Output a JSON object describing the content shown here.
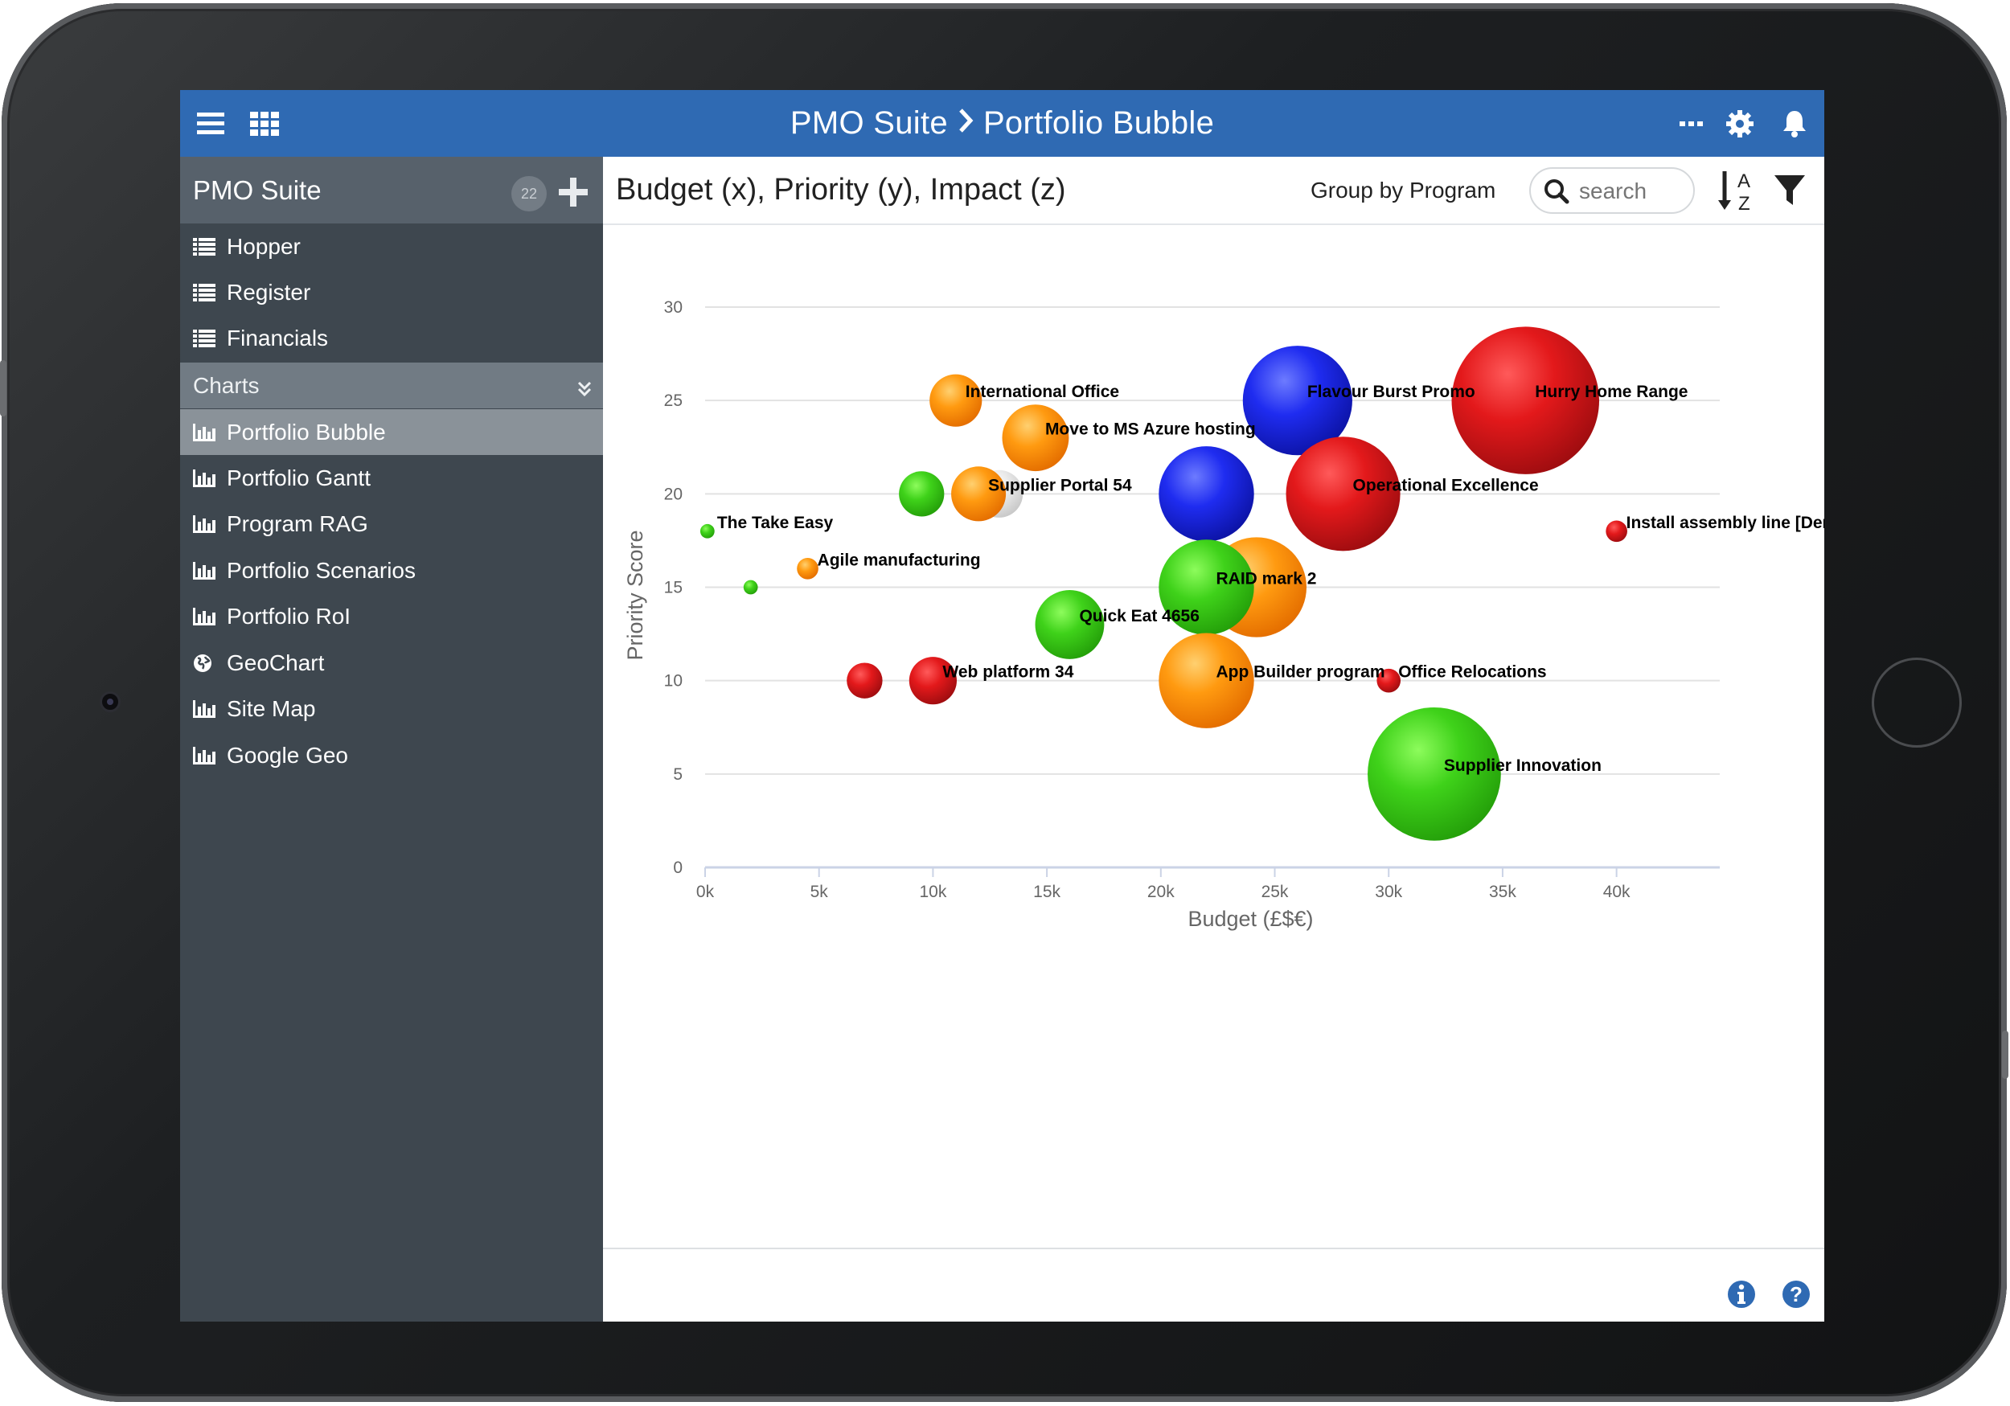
{
  "app": {
    "title_app": "PMO Suite",
    "title_page": "Portfolio Bubble"
  },
  "sidebar": {
    "title": "PMO Suite",
    "badge": "22",
    "items_top": [
      {
        "label": "Hopper",
        "icon": "list-icon"
      },
      {
        "label": "Register",
        "icon": "list-icon"
      },
      {
        "label": "Financials",
        "icon": "list-icon"
      }
    ],
    "section_label": "Charts",
    "items_charts": [
      {
        "label": "Portfolio Bubble",
        "icon": "bar-chart-icon",
        "selected": true
      },
      {
        "label": "Portfolio Gantt",
        "icon": "bar-chart-icon"
      },
      {
        "label": "Program RAG",
        "icon": "bar-chart-icon"
      },
      {
        "label": "Portfolio Scenarios",
        "icon": "bar-chart-icon"
      },
      {
        "label": "Portfolio RoI",
        "icon": "bar-chart-icon"
      },
      {
        "label": "GeoChart",
        "icon": "globe-icon"
      },
      {
        "label": "Site Map",
        "icon": "bar-chart-icon"
      },
      {
        "label": "Google Geo",
        "icon": "bar-chart-icon"
      }
    ]
  },
  "content": {
    "heading": "Budget (x), Priority (y), Impact (z)",
    "group_by": "Group by Program",
    "search_placeholder": "search"
  },
  "colors": {
    "topbar": "#2f6ab3",
    "sidebar": "#3e474f",
    "red": "#e3191b",
    "orange": "#ff9a10",
    "green": "#3fd21a",
    "blue": "#1f2cf0",
    "grey": "#e6e6e6"
  },
  "chart_data": {
    "type": "scatter",
    "subtype": "bubble",
    "xlabel": "Budget (£$€)",
    "ylabel": "Priority Score",
    "xlim": [
      0,
      44000
    ],
    "ylim": [
      0,
      30
    ],
    "x_ticks": [
      "0k",
      "5k",
      "10k",
      "15k",
      "20k",
      "25k",
      "30k",
      "35k",
      "40k"
    ],
    "y_ticks": [
      "0",
      "5",
      "10",
      "15",
      "20",
      "25",
      "30"
    ],
    "grid": true,
    "points": [
      {
        "label": "",
        "x": 12900,
        "y": 20,
        "z": 20,
        "color": "grey"
      },
      {
        "label": "",
        "x": 24200,
        "y": 15,
        "z": 42,
        "color": "orange"
      },
      {
        "label": "International Office",
        "x": 11000,
        "y": 25,
        "z": 22,
        "color": "orange"
      },
      {
        "label": "Move to MS Azure hosting",
        "x": 14500,
        "y": 23,
        "z": 28,
        "color": "orange"
      },
      {
        "label": "Supplier Portal 54",
        "x": 12000,
        "y": 20,
        "z": 23,
        "color": "orange"
      },
      {
        "label": "",
        "x": 9500,
        "y": 20,
        "z": 19,
        "color": "green"
      },
      {
        "label": "The Take Easy",
        "x": 100,
        "y": 18,
        "z": 6,
        "color": "green"
      },
      {
        "label": "Agile manufacturing",
        "x": 4500,
        "y": 16,
        "z": 9,
        "color": "orange"
      },
      {
        "label": "",
        "x": 2000,
        "y": 15,
        "z": 6,
        "color": "green"
      },
      {
        "label": "Quick Eat 4656",
        "x": 16000,
        "y": 13,
        "z": 29,
        "color": "green"
      },
      {
        "label": "",
        "x": 7000,
        "y": 10,
        "z": 15,
        "color": "red"
      },
      {
        "label": "Web platform 34",
        "x": 10000,
        "y": 10,
        "z": 20,
        "color": "red"
      },
      {
        "label": "Flavour Burst Promo",
        "x": 26000,
        "y": 25,
        "z": 46,
        "color": "blue"
      },
      {
        "label": "Hurry Home Range",
        "x": 36000,
        "y": 25,
        "z": 62,
        "color": "red"
      },
      {
        "label": "Operational Excellence",
        "x": 28000,
        "y": 20,
        "z": 48,
        "color": "red"
      },
      {
        "label": "",
        "x": 22000,
        "y": 20,
        "z": 40,
        "color": "blue"
      },
      {
        "label": "Install assembly line [Demo]",
        "x": 40000,
        "y": 18,
        "z": 9,
        "color": "red"
      },
      {
        "label": "RAID mark 2",
        "x": 22000,
        "y": 15,
        "z": 40,
        "color": "green"
      },
      {
        "label": "App Builder program",
        "x": 22000,
        "y": 10,
        "z": 40,
        "color": "orange"
      },
      {
        "label": "Office Relocations",
        "x": 30000,
        "y": 10,
        "z": 10,
        "color": "red"
      },
      {
        "label": "Supplier Innovation",
        "x": 32000,
        "y": 5,
        "z": 56,
        "color": "green"
      }
    ]
  }
}
